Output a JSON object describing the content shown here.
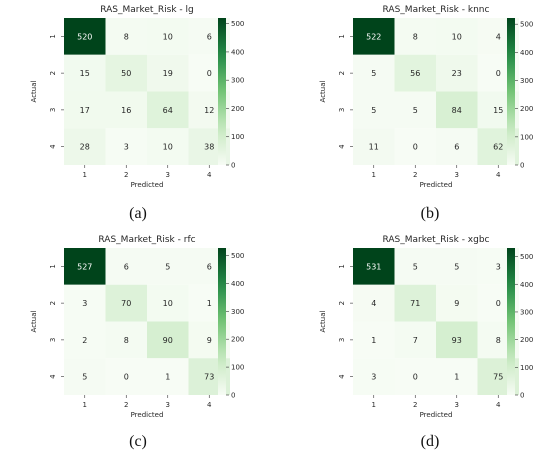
{
  "chart_data": [
    {
      "type": "heatmap",
      "title": "RAS_Market_Risk - lg",
      "xlabel": "Predicted",
      "ylabel": "Actual",
      "x_categories": [
        "1",
        "2",
        "3",
        "4"
      ],
      "y_categories": [
        "1",
        "2",
        "3",
        "4"
      ],
      "values": [
        [
          520,
          8,
          10,
          6
        ],
        [
          15,
          50,
          19,
          0
        ],
        [
          17,
          16,
          64,
          12
        ],
        [
          28,
          3,
          10,
          38
        ]
      ],
      "colorbar_ticks": [
        0,
        100,
        200,
        300,
        400,
        500
      ],
      "color_range": [
        0,
        520
      ],
      "caption": "(a)"
    },
    {
      "type": "heatmap",
      "title": "RAS_Market_Risk - knnc",
      "xlabel": "Predicted",
      "ylabel": "Actual",
      "x_categories": [
        "1",
        "2",
        "3",
        "4"
      ],
      "y_categories": [
        "1",
        "2",
        "3",
        "4"
      ],
      "values": [
        [
          522,
          8,
          10,
          4
        ],
        [
          5,
          56,
          23,
          0
        ],
        [
          5,
          5,
          84,
          15
        ],
        [
          11,
          0,
          6,
          62
        ]
      ],
      "colorbar_ticks": [
        0,
        100,
        200,
        300,
        400,
        500
      ],
      "color_range": [
        0,
        522
      ],
      "caption": "(b)"
    },
    {
      "type": "heatmap",
      "title": "RAS_Market_Risk - rfc",
      "xlabel": "Predicted",
      "ylabel": "Actual",
      "x_categories": [
        "1",
        "2",
        "3",
        "4"
      ],
      "y_categories": [
        "1",
        "2",
        "3",
        "4"
      ],
      "values": [
        [
          527,
          6,
          5,
          6
        ],
        [
          3,
          70,
          10,
          1
        ],
        [
          2,
          8,
          90,
          9
        ],
        [
          5,
          0,
          1,
          73
        ]
      ],
      "colorbar_ticks": [
        0,
        100,
        200,
        300,
        400,
        500
      ],
      "color_range": [
        0,
        527
      ],
      "caption": "(c)"
    },
    {
      "type": "heatmap",
      "title": "RAS_Market_Risk - xgbc",
      "xlabel": "Predicted",
      "ylabel": "Actual",
      "x_categories": [
        "1",
        "2",
        "3",
        "4"
      ],
      "y_categories": [
        "1",
        "2",
        "3",
        "4"
      ],
      "values": [
        [
          531,
          5,
          5,
          3
        ],
        [
          4,
          71,
          9,
          0
        ],
        [
          1,
          7,
          93,
          8
        ],
        [
          3,
          0,
          1,
          75
        ]
      ],
      "colorbar_ticks": [
        0,
        100,
        200,
        300,
        400,
        500
      ],
      "color_range": [
        0,
        531
      ],
      "caption": "(d)"
    }
  ],
  "colors": {
    "scale_low": "#f7fcf5",
    "scale_mid": "#74c476",
    "scale_high": "#00441b",
    "text_dark": "#262626",
    "text_light": "#ffffff"
  }
}
